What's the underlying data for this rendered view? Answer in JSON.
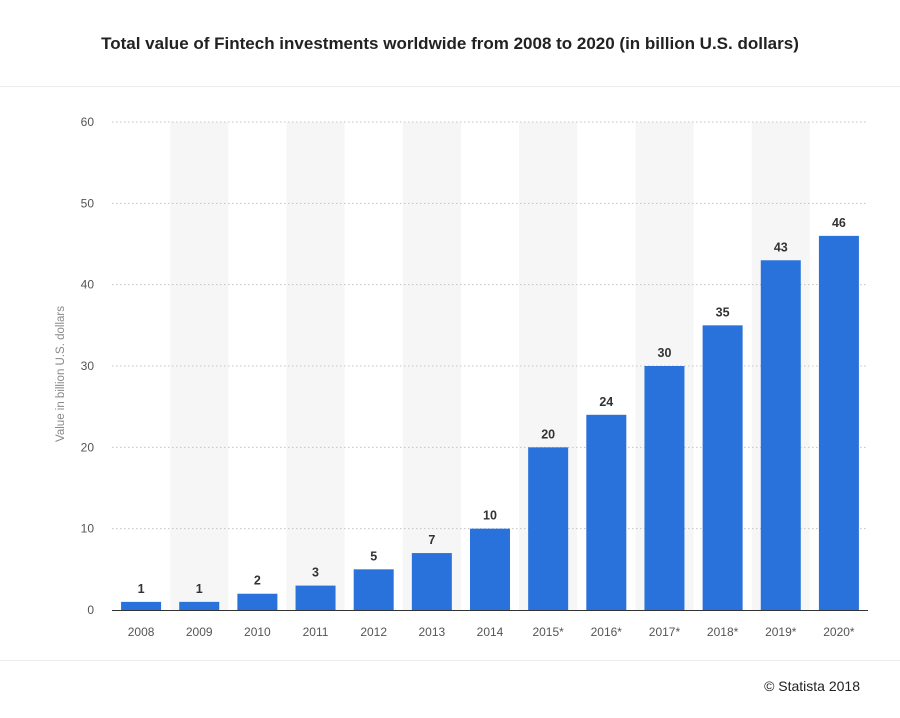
{
  "chart_data": {
    "type": "bar",
    "title": "Total value of Fintech investments worldwide from 2008 to 2020 (in billion U.S. dollars)",
    "xlabel": "",
    "ylabel": "Value in billion U.S. dollars",
    "ylim": [
      0,
      60
    ],
    "yticks": [
      0,
      10,
      20,
      30,
      40,
      50,
      60
    ],
    "categories": [
      "2008",
      "2009",
      "2010",
      "2011",
      "2012",
      "2013",
      "2014",
      "2015*",
      "2016*",
      "2017*",
      "2018*",
      "2019*",
      "2020*"
    ],
    "values": [
      1,
      1,
      2,
      3,
      5,
      7,
      10,
      20,
      24,
      30,
      35,
      43,
      46
    ],
    "bar_color": "#2a72db",
    "alternate_band_color": "#f6f6f6",
    "grid": true,
    "legend": "none"
  },
  "footer": {
    "credit": "© Statista 2018"
  }
}
